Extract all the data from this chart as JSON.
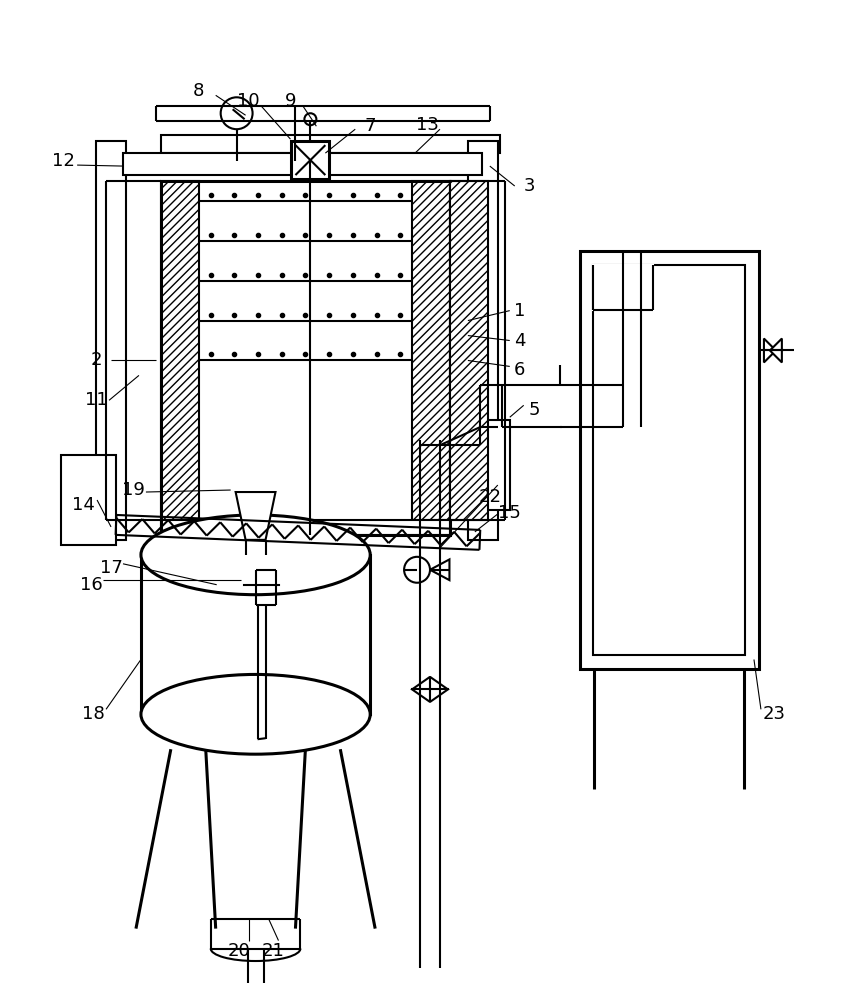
{
  "line_color": "#000000",
  "bg_color": "#ffffff",
  "lw": 1.5,
  "tlw": 2.2,
  "fs": 13,
  "figsize": [
    8.63,
    10.0
  ],
  "dpi": 100
}
